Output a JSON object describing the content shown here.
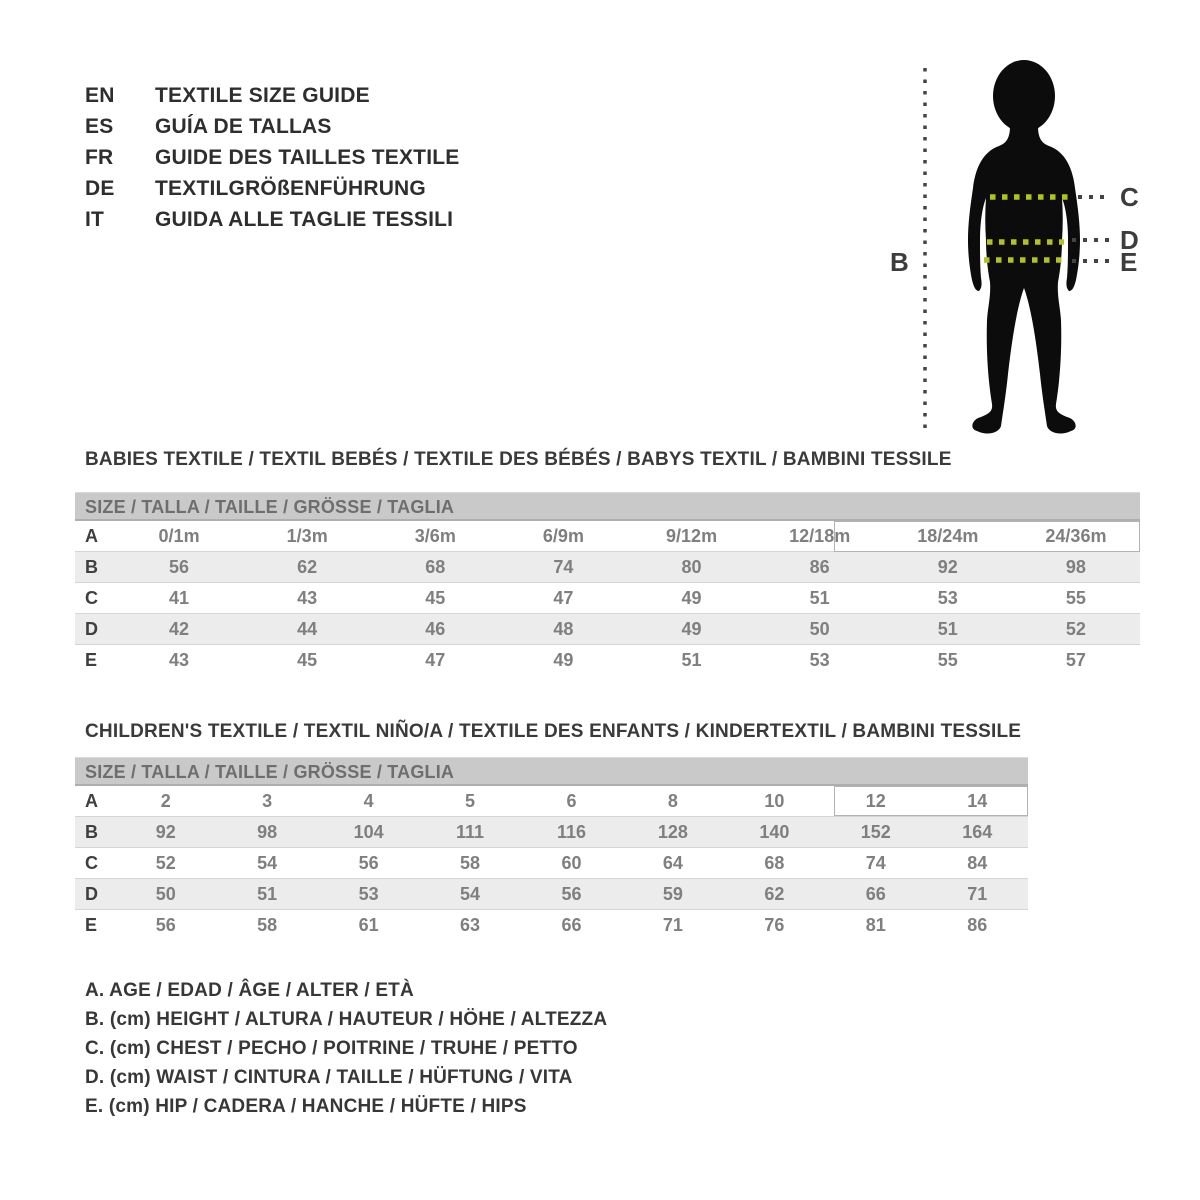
{
  "languages": [
    {
      "code": "EN",
      "label": "TEXTILE SIZE GUIDE"
    },
    {
      "code": "ES",
      "label": "GUÍA DE TALLAS"
    },
    {
      "code": "FR",
      "label": "GUIDE DES TAILLES TEXTILE"
    },
    {
      "code": "DE",
      "label": "TEXTILGRÖßENFÜHRUNG"
    },
    {
      "code": "IT",
      "label": "GUIDA ALLE TAGLIE TESSILI"
    }
  ],
  "figure": {
    "labels": {
      "height": "B",
      "chest": "C",
      "waist": "D",
      "hip": "E"
    },
    "dash_color": "#b2c319",
    "guide_color": "#444444",
    "silhouette_color": "#0c0c0c"
  },
  "babies_table": {
    "title": "BABIES TEXTILE / TEXTIL BEBÉS / TEXTILE DES BÉBÉS / BABYS TEXTIL / BAMBINI TESSILE",
    "header": "SIZE / TALLA / TAILLE / GRÖSSE / TAGLIA",
    "rows": [
      {
        "label": "A",
        "values": [
          "0/1m",
          "1/3m",
          "3/6m",
          "6/9m",
          "9/12m",
          "12/18m",
          "18/24m",
          "24/36m"
        ]
      },
      {
        "label": "B",
        "values": [
          56,
          62,
          68,
          74,
          80,
          86,
          92,
          98
        ]
      },
      {
        "label": "C",
        "values": [
          41,
          43,
          45,
          47,
          49,
          51,
          53,
          55
        ]
      },
      {
        "label": "D",
        "values": [
          42,
          44,
          46,
          48,
          49,
          50,
          51,
          52
        ]
      },
      {
        "label": "E",
        "values": [
          43,
          45,
          47,
          49,
          51,
          53,
          55,
          57
        ]
      }
    ]
  },
  "children_table": {
    "title": "CHILDREN'S TEXTILE / TEXTIL NIÑO/A / TEXTILE DES ENFANTS / KINDERTEXTIL / BAMBINI TESSILE",
    "header": "SIZE / TALLA / TAILLE / GRÖSSE / TAGLIA",
    "rows": [
      {
        "label": "A",
        "values": [
          2,
          3,
          4,
          5,
          6,
          8,
          10,
          12,
          14
        ]
      },
      {
        "label": "B",
        "values": [
          92,
          98,
          104,
          111,
          116,
          128,
          140,
          152,
          164
        ]
      },
      {
        "label": "C",
        "values": [
          52,
          54,
          56,
          58,
          60,
          64,
          68,
          74,
          84
        ]
      },
      {
        "label": "D",
        "values": [
          50,
          51,
          53,
          54,
          56,
          59,
          62,
          66,
          71
        ]
      },
      {
        "label": "E",
        "values": [
          56,
          58,
          61,
          63,
          66,
          71,
          76,
          81,
          86
        ]
      }
    ]
  },
  "legend": [
    "A. AGE / EDAD / ÂGE / ALTER / ETÀ",
    "B. (cm) HEIGHT / ALTURA / HAUTEUR / HÖHE / ALTEZZA",
    "C. (cm) CHEST / PECHO / POITRINE / TRUHE / PETTO",
    "D. (cm) WAIST / CINTURA / TAILLE / HÜFTUNG / VITA",
    "E. (cm) HIP / CADERA / HANCHE / HÜFTE / HIPS"
  ]
}
